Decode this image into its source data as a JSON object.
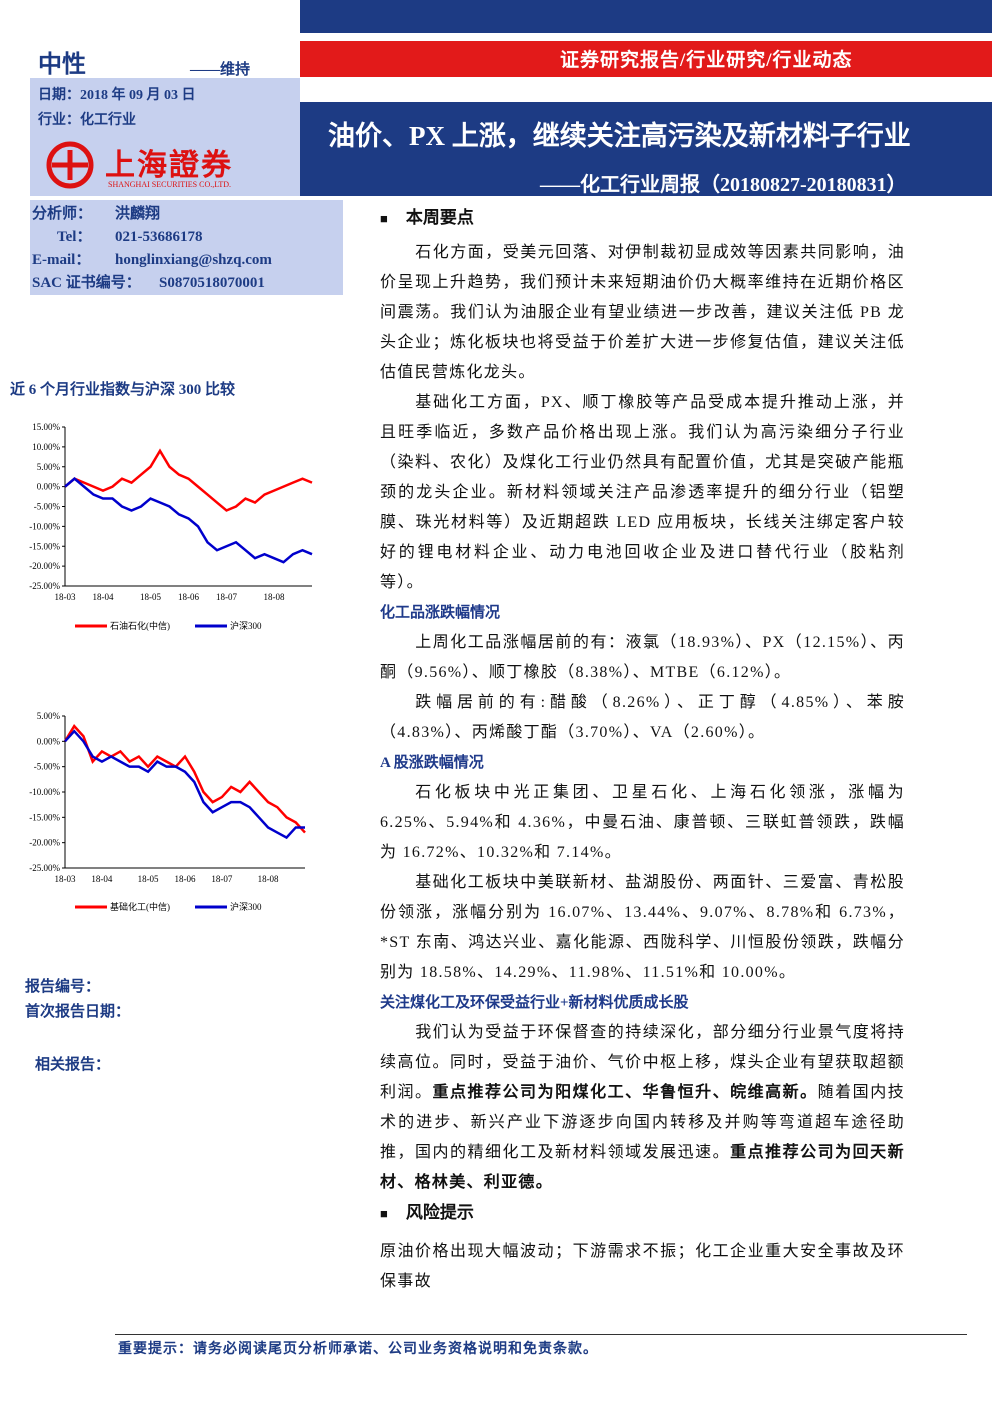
{
  "header": {
    "rating": "中性",
    "rating_action": "——维持",
    "date": "日期：2018 年 09 月 03 日",
    "industry": "行业：化工行业",
    "logo_cn": "上海證券",
    "logo_en": "SHANGHAI SECURITIES CO.,LTD.",
    "category": "证券研究报告/行业研究/行业动态",
    "title": "油价、PX 上涨，继续关注高污染及新材料子行业",
    "subtitle": "——化工行业周报（20180827-20180831）"
  },
  "analyst": [
    [
      "分析师：",
      "洪麟翔"
    ],
    [
      "Tel：",
      "021-53686178"
    ],
    [
      "E-mail：",
      "honglinxiang@shzq.com"
    ],
    [
      "SAC 证书编号：",
      "S0870518070001"
    ]
  ],
  "chart_section_title": "近 6 个月行业指数与沪深 300 比较",
  "chart_data": [
    {
      "type": "line",
      "categories": [
        "18-03",
        null,
        null,
        null,
        "18-04",
        null,
        null,
        null,
        null,
        "18-05",
        null,
        null,
        null,
        "18-06",
        null,
        null,
        null,
        "18-07",
        null,
        null,
        null,
        null,
        "18-08",
        null,
        null,
        null,
        null
      ],
      "ylim": [
        -25,
        15
      ],
      "yticks": [
        {
          "value": -25,
          "label": "-25.00%"
        },
        {
          "value": -20,
          "label": "-20.00%"
        },
        {
          "value": -15,
          "label": "-15.00%"
        },
        {
          "value": -10,
          "label": "-10.00%"
        },
        {
          "value": -5,
          "label": "-5.00%"
        },
        {
          "value": 0,
          "label": "0.00%"
        },
        {
          "value": 5,
          "label": "5.00%"
        },
        {
          "value": 10,
          "label": "10.00%"
        },
        {
          "value": 15,
          "label": "15.00%"
        }
      ],
      "series": [
        {
          "name": "石油石化(中信)",
          "color": "#ff0000",
          "values": [
            0,
            2,
            1,
            0,
            -1,
            0,
            2,
            1,
            3,
            5,
            9,
            5,
            3,
            2,
            0,
            -2,
            -4,
            -6,
            -5,
            -3,
            -4,
            -2,
            -1,
            0,
            1,
            2,
            1
          ]
        },
        {
          "name": "沪深300",
          "color": "#0000cc",
          "values": [
            0,
            2,
            0,
            -2,
            -3,
            -3,
            -5,
            -6,
            -5,
            -3,
            -4,
            -5,
            -7,
            -8,
            -10,
            -14,
            -16,
            -15,
            -14,
            -16,
            -18,
            -17,
            -18,
            -19,
            -17,
            -16,
            -17
          ]
        }
      ]
    },
    {
      "type": "line",
      "categories": [
        "18-03",
        null,
        null,
        null,
        "18-04",
        null,
        null,
        null,
        null,
        "18-05",
        null,
        null,
        null,
        "18-06",
        null,
        null,
        null,
        "18-07",
        null,
        null,
        null,
        null,
        "18-08",
        null,
        null,
        null,
        null
      ],
      "ylim": [
        -25,
        5
      ],
      "yticks": [
        {
          "value": -25,
          "label": "-25.00%"
        },
        {
          "value": -20,
          "label": "-20.00%"
        },
        {
          "value": -15,
          "label": "-15.00%"
        },
        {
          "value": -10,
          "label": "-10.00%"
        },
        {
          "value": -5,
          "label": "-5.00%"
        },
        {
          "value": 0,
          "label": "0.00%"
        },
        {
          "value": 5,
          "label": "5.00%"
        }
      ],
      "series": [
        {
          "name": "基础化工(中信)",
          "color": "#ff0000",
          "values": [
            0,
            3,
            1,
            -4,
            -2,
            -3,
            -2,
            -4,
            -3,
            -5,
            -3,
            -4,
            -5,
            -3,
            -6,
            -10,
            -12,
            -11,
            -9,
            -10,
            -8,
            -10,
            -12,
            -13,
            -15,
            -16,
            -18
          ]
        },
        {
          "name": "沪深300",
          "color": "#0000cc",
          "values": [
            0,
            2,
            0,
            -3,
            -4,
            -3,
            -4,
            -5,
            -5,
            -6,
            -4,
            -5,
            -5,
            -6,
            -8,
            -12,
            -14,
            -13,
            -12,
            -12,
            -13,
            -15,
            -17,
            -18,
            -19,
            -17,
            -17
          ]
        }
      ]
    }
  ],
  "sidebar": {
    "report_no": "报告编号：",
    "first_date": "首次报告日期：",
    "related": "相关报告："
  },
  "body": [
    {
      "heading": "本周要点",
      "style": "main",
      "paragraphs": [
        [
          {
            "text": "石化方面，受美元回落、对伊制裁初显成效等因素共同影响，油价呈现上升趋势，我们预计未来短期油价仍大概率维持在近期价格区间震荡。我们认为油服企业有望业绩进一步改善，建议关注低 PB 龙头企业；炼化板块也将受益于价差扩大进一步修复估值，建议关注低估值民营炼化龙头。",
            "bold": false
          }
        ],
        [
          {
            "text": "基础化工方面，PX、顺丁橡胶等产品受成本提升推动上涨，并且旺季临近，多数产品价格出现上涨。我们认为高污染细分子行业（染料、农化）及煤化工行业仍然具有配置价值，尤其是突破产能瓶颈的龙头企业。新材料领域关注产品渗透率提升的细分行业（铝塑膜、珠光材料等）及近期超跌 LED 应用板块，长线关注绑定客户较好的锂电材料企业、动力电池回收企业及进口替代行业（胶粘剂等）。",
            "bold": false
          }
        ]
      ]
    },
    {
      "heading": "化工品涨跌幅情况",
      "style": "sub",
      "paragraphs": [
        [
          {
            "text": "上周化工品涨幅居前的有：液氯（18.93%）、PX（12.15%）、丙酮（9.56%）、顺丁橡胶（8.38%）、MTBE（6.12%）。",
            "bold": false
          }
        ],
        [
          {
            "text": "跌幅居前的有:醋酸（8.26%）、正丁醇（4.85%）、苯胺（4.83%）、丙烯酸丁酯（3.70%）、VA（2.60%）。",
            "bold": false
          }
        ]
      ]
    },
    {
      "heading": "A 股涨跌幅情况",
      "style": "sub",
      "paragraphs": [
        [
          {
            "text": "石化板块中光正集团、卫星石化、上海石化领涨，涨幅为 6.25%、5.94%和 4.36%，中曼石油、康普顿、三联虹普领跌，跌幅为 16.72%、10.32%和 7.14%。",
            "bold": false
          }
        ],
        [
          {
            "text": "基础化工板块中美联新材、盐湖股份、两面针、三爱富、青松股份领涨，涨幅分别为 16.07%、13.44%、9.07%、8.78%和 6.73%，*ST 东南、鸿达兴业、嘉化能源、西陇科学、川恒股份领跌，跌幅分别为 18.58%、14.29%、11.98%、11.51%和 10.00%。",
            "bold": false
          }
        ]
      ]
    },
    {
      "heading": "关注煤化工及环保受益行业+新材料优质成长股",
      "style": "sub",
      "paragraphs": [
        [
          {
            "text": "我们认为受益于环保督查的持续深化，部分细分行业景气度将持续高位。同时，受益于油价、气价中枢上移，煤头企业有望获取超额利润。",
            "bold": false
          },
          {
            "text": "重点推荐公司为阳煤化工、华鲁恒升、皖维高新。",
            "bold": true
          },
          {
            "text": "随着国内技术的进步、新兴产业下游逐步向国内转移及并购等弯道超车途径助推，国内的精细化工及新材料领域发展迅速。",
            "bold": false
          },
          {
            "text": "重点推荐公司为回天新材、格林美、利亚德。",
            "bold": true
          }
        ]
      ]
    },
    {
      "heading": "风险提示",
      "style": "main",
      "indent": false,
      "paragraphs": [
        [
          {
            "text": "原油价格出现大幅波动；下游需求不振；化工企业重大安全事故及环保事故",
            "bold": false
          }
        ]
      ]
    }
  ],
  "footer": "重要提示：请务必阅读尾页分析师承诺、公司业务资格说明和免责条款。"
}
